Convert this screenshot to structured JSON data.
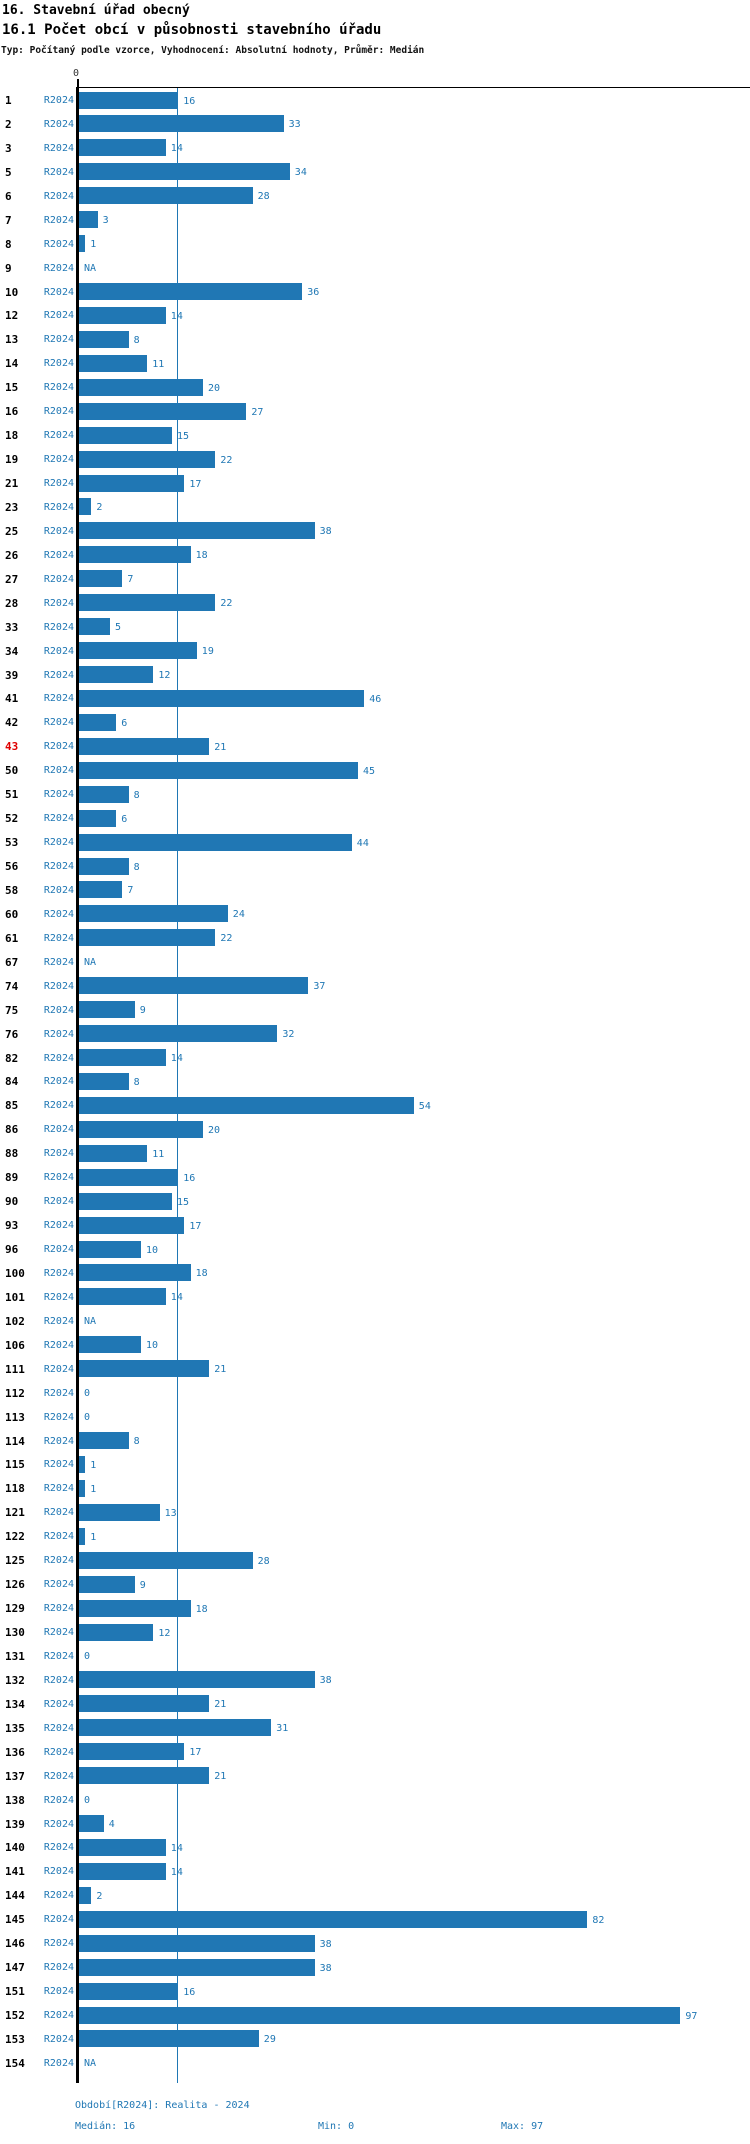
{
  "header": {
    "title1": "16. Stavební úřad obecný",
    "title2": "16.1 Počet obcí v působnosti stavebního úřadu",
    "subtitle": "Typ: Počítaný podle vzorce, Vyhodnocení: Absolutní hodnoty, Průměr: Medián"
  },
  "chart_data": {
    "type": "bar",
    "orientation": "horizontal",
    "series_label": "R2024",
    "axis_zero_label": "0",
    "na_label": "NA",
    "median_value": 16,
    "xlim": [
      0,
      97
    ],
    "bar_color": "#2077b4",
    "label_color": "#1f77b4",
    "highlight_color": "#e00000",
    "rows": [
      {
        "id": "1",
        "value": 16
      },
      {
        "id": "2",
        "value": 33
      },
      {
        "id": "3",
        "value": 14
      },
      {
        "id": "5",
        "value": 34
      },
      {
        "id": "6",
        "value": 28
      },
      {
        "id": "7",
        "value": 3
      },
      {
        "id": "8",
        "value": 1
      },
      {
        "id": "9",
        "value": null
      },
      {
        "id": "10",
        "value": 36
      },
      {
        "id": "12",
        "value": 14
      },
      {
        "id": "13",
        "value": 8
      },
      {
        "id": "14",
        "value": 11
      },
      {
        "id": "15",
        "value": 20
      },
      {
        "id": "16",
        "value": 27
      },
      {
        "id": "18",
        "value": 15
      },
      {
        "id": "19",
        "value": 22
      },
      {
        "id": "21",
        "value": 17
      },
      {
        "id": "23",
        "value": 2
      },
      {
        "id": "25",
        "value": 38
      },
      {
        "id": "26",
        "value": 18
      },
      {
        "id": "27",
        "value": 7
      },
      {
        "id": "28",
        "value": 22
      },
      {
        "id": "33",
        "value": 5
      },
      {
        "id": "34",
        "value": 19
      },
      {
        "id": "39",
        "value": 12
      },
      {
        "id": "41",
        "value": 46
      },
      {
        "id": "42",
        "value": 6
      },
      {
        "id": "43",
        "value": 21,
        "highlight": true
      },
      {
        "id": "50",
        "value": 45
      },
      {
        "id": "51",
        "value": 8
      },
      {
        "id": "52",
        "value": 6
      },
      {
        "id": "53",
        "value": 44
      },
      {
        "id": "56",
        "value": 8
      },
      {
        "id": "58",
        "value": 7
      },
      {
        "id": "60",
        "value": 24
      },
      {
        "id": "61",
        "value": 22
      },
      {
        "id": "67",
        "value": null
      },
      {
        "id": "74",
        "value": 37
      },
      {
        "id": "75",
        "value": 9
      },
      {
        "id": "76",
        "value": 32
      },
      {
        "id": "82",
        "value": 14
      },
      {
        "id": "84",
        "value": 8
      },
      {
        "id": "85",
        "value": 54
      },
      {
        "id": "86",
        "value": 20
      },
      {
        "id": "88",
        "value": 11
      },
      {
        "id": "89",
        "value": 16
      },
      {
        "id": "90",
        "value": 15
      },
      {
        "id": "93",
        "value": 17
      },
      {
        "id": "96",
        "value": 10
      },
      {
        "id": "100",
        "value": 18
      },
      {
        "id": "101",
        "value": 14
      },
      {
        "id": "102",
        "value": null
      },
      {
        "id": "106",
        "value": 10
      },
      {
        "id": "111",
        "value": 21
      },
      {
        "id": "112",
        "value": 0
      },
      {
        "id": "113",
        "value": 0
      },
      {
        "id": "114",
        "value": 8
      },
      {
        "id": "115",
        "value": 1
      },
      {
        "id": "118",
        "value": 1
      },
      {
        "id": "121",
        "value": 13
      },
      {
        "id": "122",
        "value": 1
      },
      {
        "id": "125",
        "value": 28
      },
      {
        "id": "126",
        "value": 9
      },
      {
        "id": "129",
        "value": 18
      },
      {
        "id": "130",
        "value": 12
      },
      {
        "id": "131",
        "value": 0
      },
      {
        "id": "132",
        "value": 38
      },
      {
        "id": "134",
        "value": 21
      },
      {
        "id": "135",
        "value": 31
      },
      {
        "id": "136",
        "value": 17
      },
      {
        "id": "137",
        "value": 21
      },
      {
        "id": "138",
        "value": 0
      },
      {
        "id": "139",
        "value": 4
      },
      {
        "id": "140",
        "value": 14
      },
      {
        "id": "141",
        "value": 14
      },
      {
        "id": "144",
        "value": 2
      },
      {
        "id": "145",
        "value": 82
      },
      {
        "id": "146",
        "value": 38
      },
      {
        "id": "147",
        "value": 38
      },
      {
        "id": "151",
        "value": 16
      },
      {
        "id": "152",
        "value": 97
      },
      {
        "id": "153",
        "value": 29
      },
      {
        "id": "154",
        "value": null
      }
    ]
  },
  "footer": {
    "period_line": "Období[R2024]: Realita - 2024",
    "median_label": "Medián: 16",
    "min_label": "Min: 0",
    "max_label": "Max: 97"
  }
}
